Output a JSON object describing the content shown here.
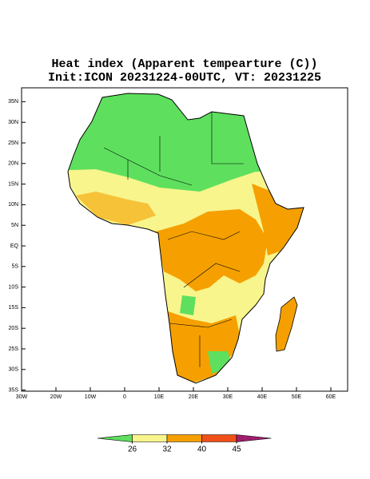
{
  "title": "Heat index (Apparent tempearture (C))",
  "subtitle": "Init:ICON 20231224-00UTC, VT: 20231225",
  "lon_ticks": [
    {
      "value": -30,
      "label": "30W"
    },
    {
      "value": -20,
      "label": "20W"
    },
    {
      "value": -10,
      "label": "10W"
    },
    0,
    {
      "value": 10,
      "label": "10E"
    },
    {
      "value": 20,
      "label": "20E"
    },
    {
      "value": 30,
      "label": "30E"
    },
    {
      "value": 40,
      "label": "40E"
    },
    {
      "value": 50,
      "label": "50E"
    },
    {
      "value": 60,
      "label": "60E"
    }
  ],
  "lat_ticks": [
    {
      "value": 35,
      "label": "35N"
    },
    {
      "value": 30,
      "label": "30N"
    },
    {
      "value": 25,
      "label": "25N"
    },
    {
      "value": 20,
      "label": "20N"
    },
    {
      "value": 15,
      "label": "15N"
    },
    {
      "value": 10,
      "label": "10N"
    },
    {
      "value": 5,
      "label": "5N"
    },
    {
      "value": 0,
      "label": "EQ"
    },
    {
      "value": -5,
      "label": "5S"
    },
    {
      "value": -10,
      "label": "10S"
    },
    {
      "value": -15,
      "label": "15S"
    },
    {
      "value": -20,
      "label": "20S"
    },
    {
      "value": -25,
      "label": "25S"
    },
    {
      "value": -30,
      "label": "30S"
    },
    {
      "value": -35,
      "label": "35S"
    }
  ],
  "colorbar": {
    "levels": [
      26,
      32,
      40,
      45
    ],
    "colors": [
      "#5ee05e",
      "#f8f58c",
      "#f5a000",
      "#f0501a",
      "#a01e6e"
    ]
  }
}
